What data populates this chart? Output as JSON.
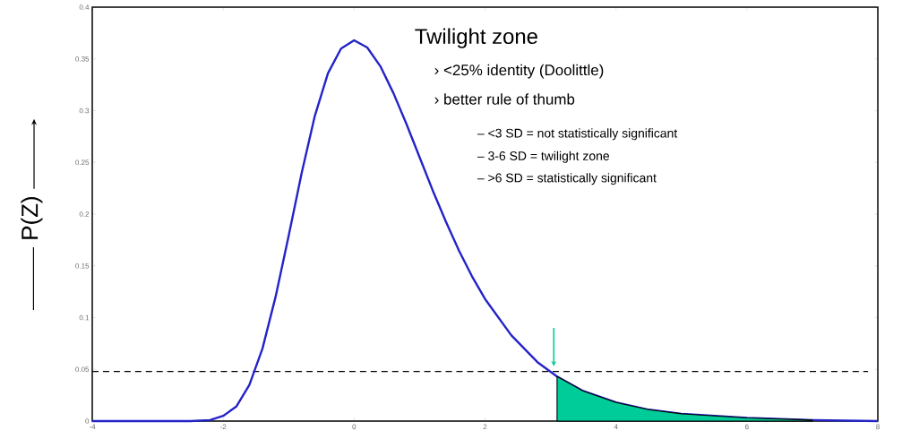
{
  "chart_data": {
    "type": "line",
    "ylabel": "P(Z)",
    "xlim": [
      -4,
      8
    ],
    "ylim": [
      0,
      0.4
    ],
    "xticks": [
      -4,
      -2,
      0,
      2,
      4,
      6,
      8
    ],
    "yticks": [
      0,
      0.05,
      0.1,
      0.15,
      0.2,
      0.25,
      0.3,
      0.35,
      0.4
    ],
    "series": [
      {
        "color": "#2323c8",
        "x": [
          -4,
          -3,
          -2.5,
          -2.2,
          -2,
          -1.8,
          -1.6,
          -1.4,
          -1.2,
          -1,
          -0.8,
          -0.6,
          -0.4,
          -0.2,
          0,
          0.2,
          0.4,
          0.6,
          0.8,
          1,
          1.2,
          1.4,
          1.6,
          1.8,
          2,
          2.4,
          2.8,
          3.1,
          3.5,
          4,
          4.5,
          5,
          6,
          7,
          8
        ],
        "values": [
          0,
          0,
          0,
          0.001,
          0.005,
          0.014,
          0.035,
          0.07,
          0.12,
          0.179,
          0.24,
          0.295,
          0.336,
          0.36,
          0.368,
          0.361,
          0.343,
          0.317,
          0.287,
          0.255,
          0.223,
          0.193,
          0.165,
          0.14,
          0.118,
          0.083,
          0.057,
          0.043,
          0.029,
          0.018,
          0.011,
          0.007,
          0.003,
          0.001,
          0
        ]
      },
      {
        "type": "area",
        "color": "#00cc99",
        "x": [
          3.1,
          3.5,
          4,
          4.5,
          5,
          6,
          7
        ],
        "values": [
          0.043,
          0.029,
          0.018,
          0.011,
          0.007,
          0.003,
          0.001
        ]
      }
    ],
    "ref_lines": [
      {
        "axis": "y",
        "value": 0.048,
        "line_style": "dashed",
        "color": "#000000"
      }
    ],
    "annotations": [
      "Twilight zone",
      "› <25% identity (Doolittle)",
      "› better rule of thumb",
      "– <3 SD = not statistically significant",
      "– 3-6 SD =  twilight zone",
      "– >6 SD = statistically significant"
    ]
  }
}
